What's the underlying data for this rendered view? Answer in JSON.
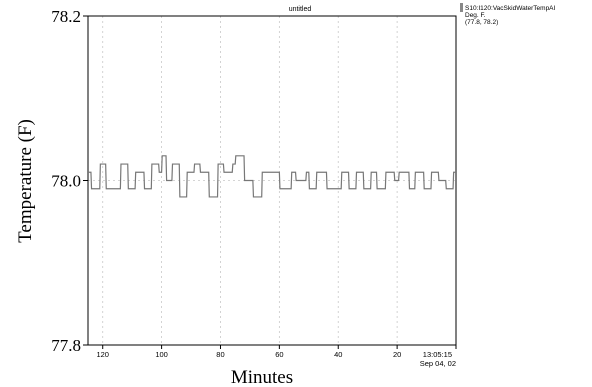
{
  "chart_data": {
    "type": "line",
    "title": "untitled",
    "xlabel": "Minutes",
    "ylabel": "Temperature (F)",
    "ylim": [
      77.8,
      78.2
    ],
    "xlim": [
      -125,
      0
    ],
    "y_ticks": [
      "78.2",
      "78.0",
      "77.8"
    ],
    "y_tick_values": [
      78.2,
      78.0,
      77.8
    ],
    "x_ticks": [
      "120",
      "100",
      "80",
      "60",
      "40",
      "20"
    ],
    "x_tick_values": [
      -120,
      -100,
      -80,
      -60,
      -40,
      -20
    ],
    "x_end_label": [
      "13:05:15",
      "Sep 04, 02"
    ],
    "grid": true,
    "legend": {
      "placement": "top-right",
      "lines": [
        "S10:I120:VacSkidWaterTempAI",
        "Deg. F.",
        "(77.8, 78.2)"
      ]
    },
    "series": [
      {
        "color": "#777777",
        "x": [
          -125.0,
          -124.0,
          -123.8,
          -121.0,
          -120.8,
          -119.0,
          -118.8,
          -114.0,
          -113.8,
          -111.5,
          -111.3,
          -109.0,
          -108.8,
          -106.0,
          -105.8,
          -103.5,
          -103.3,
          -101.0,
          -100.8,
          -100.0,
          -99.8,
          -98.5,
          -98.3,
          -96.5,
          -96.3,
          -94.0,
          -93.8,
          -91.5,
          -91.3,
          -89.0,
          -88.8,
          -87.0,
          -86.8,
          -84.0,
          -83.8,
          -81.0,
          -80.8,
          -79.0,
          -78.8,
          -76.0,
          -75.8,
          -75.0,
          -74.8,
          -72.0,
          -71.8,
          -69.0,
          -68.8,
          -66.0,
          -65.8,
          -60.0,
          -59.8,
          -56.0,
          -55.8,
          -54.5,
          -54.3,
          -51.0,
          -50.8,
          -50.0,
          -49.8,
          -47.5,
          -47.3,
          -44.0,
          -43.8,
          -39.0,
          -38.8,
          -36.5,
          -36.3,
          -34.0,
          -33.8,
          -31.5,
          -31.3,
          -29.0,
          -28.8,
          -27.0,
          -26.8,
          -24.0,
          -23.8,
          -21.0,
          -20.8,
          -19.5,
          -19.3,
          -16.0,
          -15.8,
          -14.0,
          -13.8,
          -11.0,
          -10.8,
          -8.5,
          -8.3,
          -6.0,
          -5.8,
          -3.5,
          -3.3,
          -1.0,
          -0.8,
          0.0
        ],
        "y": [
          78.01,
          78.01,
          77.99,
          77.99,
          78.02,
          78.02,
          77.99,
          77.99,
          78.02,
          78.02,
          77.99,
          77.99,
          78.01,
          78.01,
          77.99,
          77.99,
          78.02,
          78.02,
          78.01,
          78.01,
          78.03,
          78.03,
          78.0,
          78.0,
          78.02,
          78.02,
          77.98,
          77.98,
          78.01,
          78.01,
          78.02,
          78.02,
          78.01,
          78.01,
          77.98,
          77.98,
          78.02,
          78.02,
          78.01,
          78.01,
          78.02,
          78.02,
          78.03,
          78.03,
          78.0,
          78.0,
          77.98,
          77.98,
          78.01,
          78.01,
          77.99,
          77.99,
          78.01,
          78.01,
          78.0,
          78.0,
          78.01,
          78.01,
          77.99,
          77.99,
          78.01,
          78.01,
          77.99,
          77.99,
          78.01,
          78.01,
          77.99,
          77.99,
          78.01,
          78.01,
          77.99,
          77.99,
          78.01,
          78.01,
          77.99,
          77.99,
          78.01,
          78.01,
          78.0,
          78.0,
          78.01,
          78.01,
          77.99,
          77.99,
          78.01,
          78.01,
          77.99,
          77.99,
          78.01,
          78.01,
          78.0,
          78.0,
          77.99,
          77.99,
          78.01,
          78.01
        ]
      }
    ]
  }
}
